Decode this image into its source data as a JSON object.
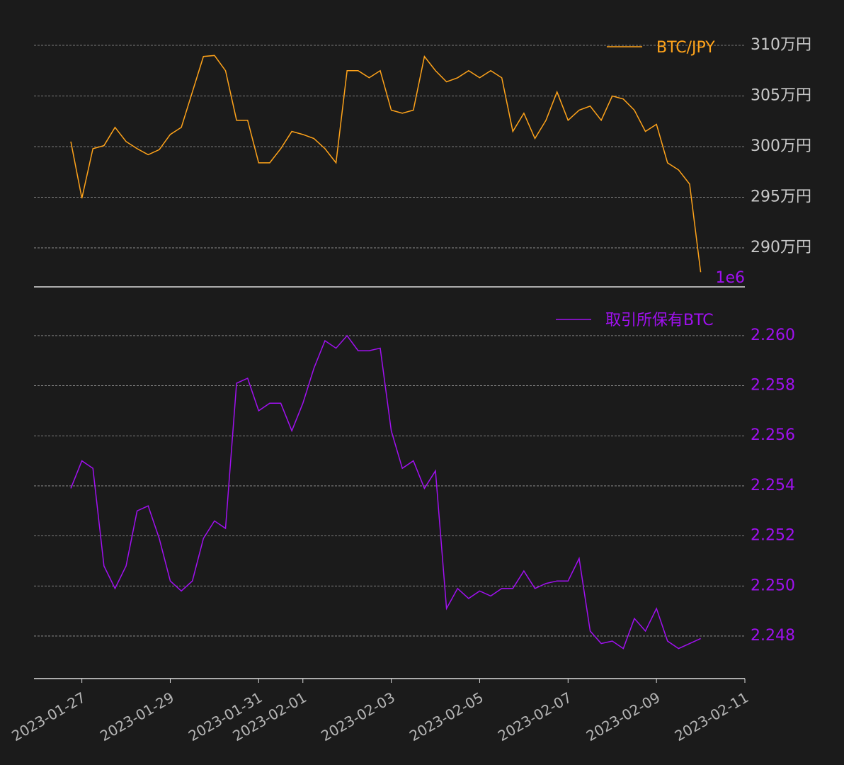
{
  "chart_data": [
    {
      "type": "line",
      "x": [
        "2023-01-26T18:00",
        "2023-01-27T00:00",
        "2023-01-27T06:00",
        "2023-01-27T12:00",
        "2023-01-27T18:00",
        "2023-01-28T00:00",
        "2023-01-28T06:00",
        "2023-01-28T12:00",
        "2023-01-28T18:00",
        "2023-01-29T00:00",
        "2023-01-29T06:00",
        "2023-01-29T12:00",
        "2023-01-29T18:00",
        "2023-01-30T00:00",
        "2023-01-30T06:00",
        "2023-01-30T12:00",
        "2023-01-30T18:00",
        "2023-01-31T00:00",
        "2023-01-31T06:00",
        "2023-01-31T12:00",
        "2023-01-31T18:00",
        "2023-02-01T00:00",
        "2023-02-01T06:00",
        "2023-02-01T12:00",
        "2023-02-01T18:00",
        "2023-02-02T00:00",
        "2023-02-02T06:00",
        "2023-02-02T12:00",
        "2023-02-02T18:00",
        "2023-02-03T00:00",
        "2023-02-03T06:00",
        "2023-02-03T12:00",
        "2023-02-03T18:00",
        "2023-02-04T00:00",
        "2023-02-04T06:00",
        "2023-02-04T12:00",
        "2023-02-04T18:00",
        "2023-02-05T00:00",
        "2023-02-05T06:00",
        "2023-02-05T12:00",
        "2023-02-05T18:00",
        "2023-02-06T00:00",
        "2023-02-06T06:00",
        "2023-02-06T12:00",
        "2023-02-06T18:00",
        "2023-02-07T00:00",
        "2023-02-07T06:00",
        "2023-02-07T12:00",
        "2023-02-07T18:00",
        "2023-02-08T00:00",
        "2023-02-08T06:00",
        "2023-02-08T12:00",
        "2023-02-08T18:00",
        "2023-02-09T00:00",
        "2023-02-09T06:00",
        "2023-02-09T12:00",
        "2023-02-09T18:00",
        "2023-02-10T00:00"
      ],
      "series": [
        {
          "name": "BTC/JPY",
          "color": "#ffa31a",
          "values": [
            3005000,
            2949000,
            2998000,
            3001000,
            3019000,
            3005000,
            2998000,
            2992000,
            2997000,
            3012000,
            3019000,
            3054000,
            3089000,
            3090000,
            3075000,
            3026000,
            3026000,
            2984000,
            2984000,
            2998000,
            3015000,
            3012000,
            3008000,
            2998000,
            2984000,
            3075000,
            3075000,
            3068000,
            3075000,
            3036000,
            3033000,
            3036000,
            3089000,
            3075000,
            3064000,
            3068000,
            3075000,
            3068000,
            3075000,
            3068000,
            3015000,
            3033000,
            3008000,
            3026000,
            3054000,
            3026000,
            3036000,
            3040000,
            3026000,
            3050000,
            3047000,
            3036000,
            3015000,
            3022000,
            2984000,
            2977000,
            2963000,
            2876000
          ]
        }
      ],
      "xlim": [
        "2023-01-25T22:00",
        "2023-02-11T00:00"
      ],
      "ylim": [
        2861500,
        3130800
      ],
      "yticks": [
        {
          "value": 2900000,
          "label": "290万円"
        },
        {
          "value": 2950000,
          "label": "295万円"
        },
        {
          "value": 3000000,
          "label": "300万円"
        },
        {
          "value": 3050000,
          "label": "305万円"
        },
        {
          "value": 3100000,
          "label": "310万円"
        }
      ],
      "grid": true,
      "legend": "upper right"
    },
    {
      "type": "line",
      "offset_text": "1e6",
      "x": [
        "2023-01-26T18:00",
        "2023-01-27T00:00",
        "2023-01-27T06:00",
        "2023-01-27T12:00",
        "2023-01-27T18:00",
        "2023-01-28T00:00",
        "2023-01-28T06:00",
        "2023-01-28T12:00",
        "2023-01-28T18:00",
        "2023-01-29T00:00",
        "2023-01-29T06:00",
        "2023-01-29T12:00",
        "2023-01-29T18:00",
        "2023-01-30T00:00",
        "2023-01-30T06:00",
        "2023-01-30T12:00",
        "2023-01-30T18:00",
        "2023-01-31T00:00",
        "2023-01-31T06:00",
        "2023-01-31T12:00",
        "2023-01-31T18:00",
        "2023-02-01T00:00",
        "2023-02-01T06:00",
        "2023-02-01T12:00",
        "2023-02-01T18:00",
        "2023-02-02T00:00",
        "2023-02-02T06:00",
        "2023-02-02T12:00",
        "2023-02-02T18:00",
        "2023-02-03T00:00",
        "2023-02-03T06:00",
        "2023-02-03T12:00",
        "2023-02-03T18:00",
        "2023-02-04T00:00",
        "2023-02-04T06:00",
        "2023-02-04T12:00",
        "2023-02-04T18:00",
        "2023-02-05T00:00",
        "2023-02-05T06:00",
        "2023-02-05T12:00",
        "2023-02-05T18:00",
        "2023-02-06T00:00",
        "2023-02-06T06:00",
        "2023-02-06T12:00",
        "2023-02-06T18:00",
        "2023-02-07T00:00",
        "2023-02-07T06:00",
        "2023-02-07T12:00",
        "2023-02-07T18:00",
        "2023-02-08T00:00",
        "2023-02-08T06:00",
        "2023-02-08T12:00",
        "2023-02-08T18:00",
        "2023-02-09T00:00",
        "2023-02-09T06:00",
        "2023-02-09T12:00",
        "2023-02-09T18:00",
        "2023-02-10T00:00"
      ],
      "series": [
        {
          "name": "取引所保有BTC",
          "color": "#a010f0",
          "values": [
            2.2539,
            2.255,
            2.2547,
            2.2508,
            2.2499,
            2.2508,
            2.253,
            2.2532,
            2.2519,
            2.2502,
            2.2498,
            2.2502,
            2.2519,
            2.2526,
            2.2523,
            2.2581,
            2.2583,
            2.257,
            2.2573,
            2.2573,
            2.2562,
            2.2573,
            2.2587,
            2.2598,
            2.2595,
            2.26,
            2.2594,
            2.2594,
            2.2595,
            2.2562,
            2.2547,
            2.255,
            2.2539,
            2.2546,
            2.2491,
            2.2499,
            2.2495,
            2.2498,
            2.2496,
            2.2499,
            2.2499,
            2.2506,
            2.2499,
            2.2501,
            2.2502,
            2.2502,
            2.2511,
            2.2482,
            2.2477,
            2.2478,
            2.2475,
            2.2487,
            2.2482,
            2.2491,
            2.2478,
            2.2475,
            2.2477,
            2.2479
          ]
        }
      ],
      "xlim": [
        "2023-01-25T22:00",
        "2023-02-11T00:00"
      ],
      "xticks": [
        "2023-01-27",
        "2023-01-29",
        "2023-01-31",
        "2023-02-01",
        "2023-02-03",
        "2023-02-05",
        "2023-02-07",
        "2023-02-09",
        "2023-02-11"
      ],
      "ylim": [
        2.2463,
        2.26195
      ],
      "yticks": [
        2.248,
        {
          "value": 2.25,
          "label": "2.250"
        },
        2.252,
        2.254,
        2.256,
        2.258,
        {
          "value": 2.26,
          "label": "2.260"
        }
      ],
      "grid": true,
      "legend": "upper right"
    }
  ]
}
